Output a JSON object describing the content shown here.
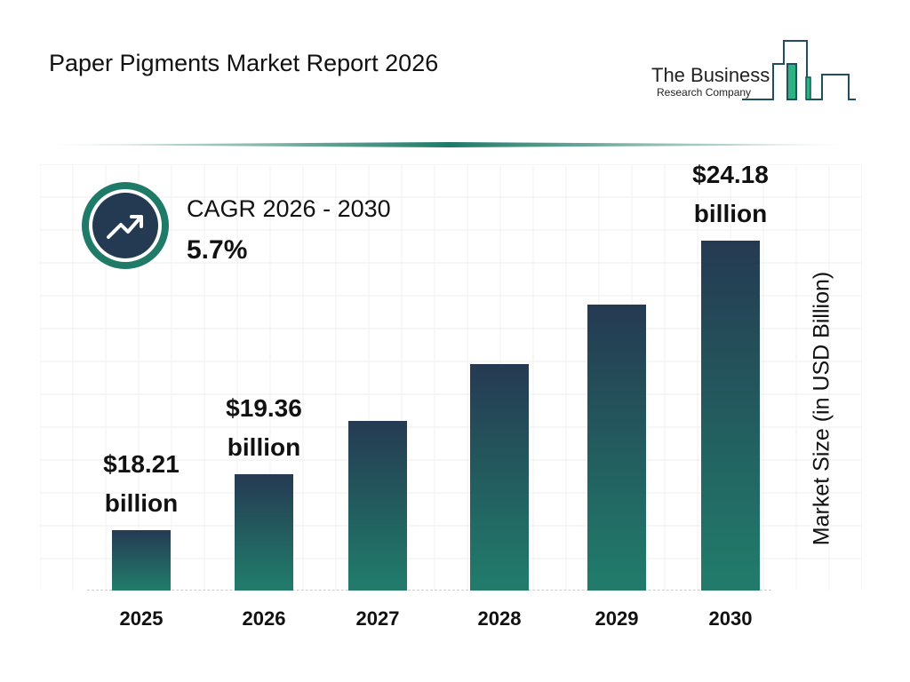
{
  "title": "Paper Pigments Market Report 2026",
  "logo": {
    "line1": "The Business",
    "line2": "Research Company",
    "colors": {
      "dark": "#1f4e5f",
      "green": "#2db37f"
    }
  },
  "cagr": {
    "label": "CAGR 2026 - 2030",
    "value": "5.7%",
    "icon": "trending-up-icon"
  },
  "chart_data": {
    "type": "bar",
    "categories": [
      "2025",
      "2026",
      "2027",
      "2028",
      "2029",
      "2030"
    ],
    "values": [
      18.21,
      19.36,
      20.46,
      21.63,
      22.87,
      24.18
    ],
    "data_labels": [
      {
        "index": 0,
        "line1": "$18.21",
        "line2": "billion"
      },
      {
        "index": 1,
        "line1": "$19.36",
        "line2": "billion"
      },
      {
        "index": 5,
        "line1": "$24.18",
        "line2": "billion"
      }
    ],
    "ylabel": "Market Size (in USD Billion)",
    "xlabel": "",
    "grid": true,
    "colors": {
      "bar_top": "#253a52",
      "bar_bottom": "#217a6a"
    }
  }
}
